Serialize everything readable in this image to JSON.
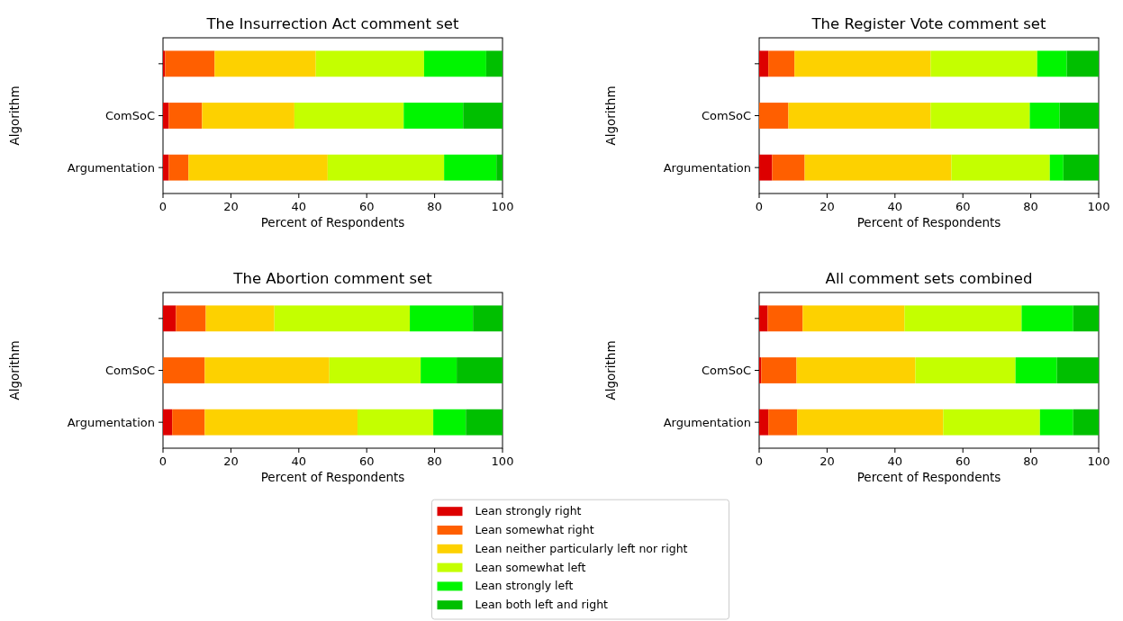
{
  "chart_data": [
    {
      "type": "bar",
      "orientation": "horizontal",
      "stacked": true,
      "title": "The Insurrection Act comment set",
      "xlabel": "Percent of Respondents",
      "ylabel": "Algorithm",
      "categories": [
        null,
        "ComSoC",
        "Argumentation"
      ],
      "xlim": [
        0,
        100
      ],
      "xticks": [
        0,
        20,
        40,
        60,
        80,
        100
      ],
      "legend": false,
      "series": [
        {
          "color": "#dd0000",
          "values": [
            0.6,
            1.7,
            1.7
          ]
        },
        {
          "color": "#ff5f00",
          "values": [
            14.6,
            9.8,
            5.8
          ]
        },
        {
          "color": "#fdd100",
          "values": [
            29.8,
            27.2,
            41.0
          ]
        },
        {
          "color": "#c4ff00",
          "values": [
            31.9,
            32.2,
            34.3
          ]
        },
        {
          "color": "#00f500",
          "values": [
            18.3,
            17.5,
            15.4
          ]
        },
        {
          "color": "#00bf00",
          "values": [
            4.8,
            11.6,
            1.8
          ]
        }
      ]
    },
    {
      "type": "bar",
      "orientation": "horizontal",
      "stacked": true,
      "title": "The Register Vote comment set",
      "xlabel": "Percent of Respondents",
      "ylabel": "Algorithm",
      "categories": [
        null,
        "ComSoC",
        "Argumentation"
      ],
      "xlim": [
        0,
        100
      ],
      "xticks": [
        0,
        20,
        40,
        60,
        80,
        100
      ],
      "legend": false,
      "series": [
        {
          "color": "#dd0000",
          "values": [
            2.7,
            0,
            3.8
          ]
        },
        {
          "color": "#ff5f00",
          "values": [
            7.7,
            8.6,
            9.6
          ]
        },
        {
          "color": "#fdd100",
          "values": [
            40.1,
            41.9,
            43.2
          ]
        },
        {
          "color": "#c4ff00",
          "values": [
            31.4,
            29.2,
            29.0
          ]
        },
        {
          "color": "#00f500",
          "values": [
            8.7,
            8.8,
            4.0
          ]
        },
        {
          "color": "#00bf00",
          "values": [
            9.4,
            11.5,
            10.4
          ]
        }
      ]
    },
    {
      "type": "bar",
      "orientation": "horizontal",
      "stacked": true,
      "title": "The Abortion comment set",
      "xlabel": "Percent of Respondents",
      "ylabel": "Algorithm",
      "categories": [
        null,
        "ComSoC",
        "Argumentation"
      ],
      "xlim": [
        0,
        100
      ],
      "xticks": [
        0,
        20,
        40,
        60,
        80,
        100
      ],
      "legend": false,
      "series": [
        {
          "color": "#dd0000",
          "values": [
            3.8,
            0,
            2.7
          ]
        },
        {
          "color": "#ff5f00",
          "values": [
            8.8,
            12.3,
            9.6
          ]
        },
        {
          "color": "#fdd100",
          "values": [
            20.2,
            36.7,
            45.0
          ]
        },
        {
          "color": "#c4ff00",
          "values": [
            39.9,
            26.9,
            22.3
          ]
        },
        {
          "color": "#00f500",
          "values": [
            18.6,
            10.6,
            9.6
          ]
        },
        {
          "color": "#00bf00",
          "values": [
            8.7,
            13.5,
            10.8
          ]
        }
      ]
    },
    {
      "type": "bar",
      "orientation": "horizontal",
      "stacked": true,
      "title": "All comment sets combined",
      "xlabel": "Percent of Respondents",
      "ylabel": "Algorithm",
      "categories": [
        null,
        "ComSoC",
        "Argumentation"
      ],
      "xlim": [
        0,
        100
      ],
      "xticks": [
        0,
        20,
        40,
        60,
        80,
        100
      ],
      "legend": "bottom",
      "series": [
        {
          "name": "Lean strongly right",
          "color": "#dd0000",
          "values": [
            2.5,
            0.6,
            2.7
          ]
        },
        {
          "name": "Lean somewhat right",
          "color": "#ff5f00",
          "values": [
            10.3,
            10.4,
            8.5
          ]
        },
        {
          "name": "Lean neither particularly left nor right",
          "color": "#fdd100",
          "values": [
            30.0,
            35.0,
            43.0
          ]
        },
        {
          "name": "Lean somewhat left",
          "color": "#c4ff00",
          "values": [
            34.5,
            29.5,
            28.5
          ]
        },
        {
          "name": "Lean strongly left",
          "color": "#00f500",
          "values": [
            15.2,
            12.2,
            9.8
          ]
        },
        {
          "name": "Lean both left and right",
          "color": "#00bf00",
          "values": [
            7.5,
            12.3,
            7.5
          ]
        }
      ]
    }
  ]
}
